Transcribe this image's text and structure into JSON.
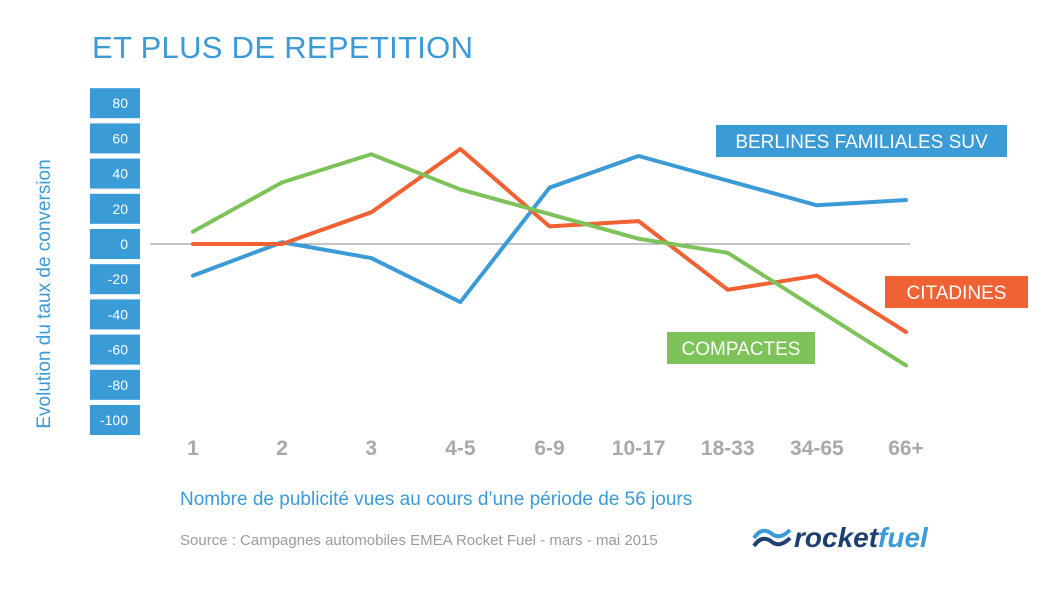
{
  "title": "ET PLUS DE REPETITION",
  "colors": {
    "blue": "#3b9bd6",
    "orange": "#f06233",
    "green": "#7dc35a",
    "grid_line": "#888888",
    "axis_tag": "#3b9bd6",
    "tick_labels": "#a9a9a9"
  },
  "source": "Source : Campagnes automobiles EMEA Rocket Fuel - mars - mai 2015",
  "logo": {
    "text_rocket": "rocket",
    "text_fuel": "fuel",
    "icon": "rocketfuel-wave-logo"
  },
  "chart_data": {
    "type": "line",
    "title": "ET PLUS DE REPETITION",
    "xlabel": "Nombre de publicité vues au cours d’une période de 56 jours",
    "ylabel": "Evolution du taux de conversion",
    "categories": [
      "1",
      "2",
      "3",
      "4-5",
      "6-9",
      "10-17",
      "18-33",
      "34-65",
      "66+"
    ],
    "yticks": [
      80,
      60,
      40,
      20,
      0,
      -20,
      -40,
      -60,
      -80,
      -100
    ],
    "ylim": [
      -100,
      80
    ],
    "grid": false,
    "zero_line": true,
    "legend": "inline labels",
    "series": [
      {
        "name": "BERLINES FAMILIALES SUV",
        "color": "#3b9bd6",
        "values": [
          -18,
          1,
          -8,
          -33,
          32,
          50,
          36,
          22,
          25
        ]
      },
      {
        "name": "CITADINES",
        "color": "#f06233",
        "values": [
          0,
          0,
          18,
          54,
          10,
          13,
          -26,
          -18,
          -50
        ]
      },
      {
        "name": "COMPACTES",
        "color": "#7dc35a",
        "values": [
          7,
          35,
          51,
          31,
          17,
          3,
          -5,
          -37,
          -69
        ]
      }
    ]
  }
}
